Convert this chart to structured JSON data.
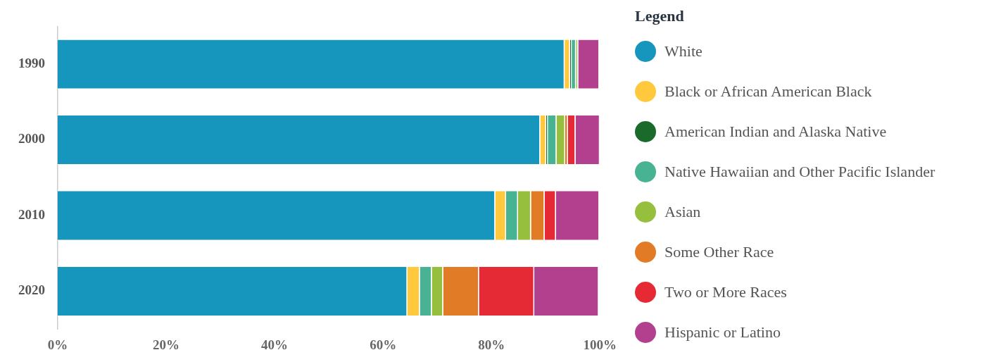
{
  "chart_data": {
    "type": "bar",
    "orientation": "horizontal",
    "stacked": true,
    "legend_title": "Legend",
    "legend": "right",
    "grid": false,
    "categories": [
      "1990",
      "2000",
      "2010",
      "2020"
    ],
    "xlim": [
      0,
      100
    ],
    "xticks": [
      {
        "value": 0,
        "label": "0%"
      },
      {
        "value": 20,
        "label": "20%"
      },
      {
        "value": 40,
        "label": "40%"
      },
      {
        "value": 60,
        "label": "60%"
      },
      {
        "value": 80,
        "label": "80%"
      },
      {
        "value": 100,
        "label": "100%"
      }
    ],
    "series": [
      {
        "name": "White",
        "color": "#1696bd",
        "values": [
          93.5,
          89.0,
          80.7,
          64.5
        ]
      },
      {
        "name": "Black or African American Black",
        "color": "#ffc83d",
        "values": [
          1.0,
          1.1,
          2.0,
          2.3
        ]
      },
      {
        "name": "American Indian and Alaska Native",
        "color": "#1a6b2b",
        "values": [
          0.3,
          0.3,
          null,
          null
        ]
      },
      {
        "name": "Native Hawaiian and Other Pacific Islander",
        "color": "#47b393",
        "values": [
          0.8,
          1.6,
          2.2,
          2.2
        ]
      },
      {
        "name": "Asian",
        "color": "#97bf3e",
        "values": [
          0.4,
          1.6,
          2.4,
          2.1
        ]
      },
      {
        "name": "Some Other Race",
        "color": "#e27b25",
        "values": [
          null,
          0.5,
          2.5,
          6.6
        ]
      },
      {
        "name": "Two or More Races",
        "color": "#e62a35",
        "values": [
          0,
          1.4,
          2.1,
          10.2
        ]
      },
      {
        "name": "Hispanic or Latino",
        "color": "#b33f8f",
        "values": [
          3.9,
          4.5,
          8.0,
          11.9
        ]
      }
    ]
  }
}
